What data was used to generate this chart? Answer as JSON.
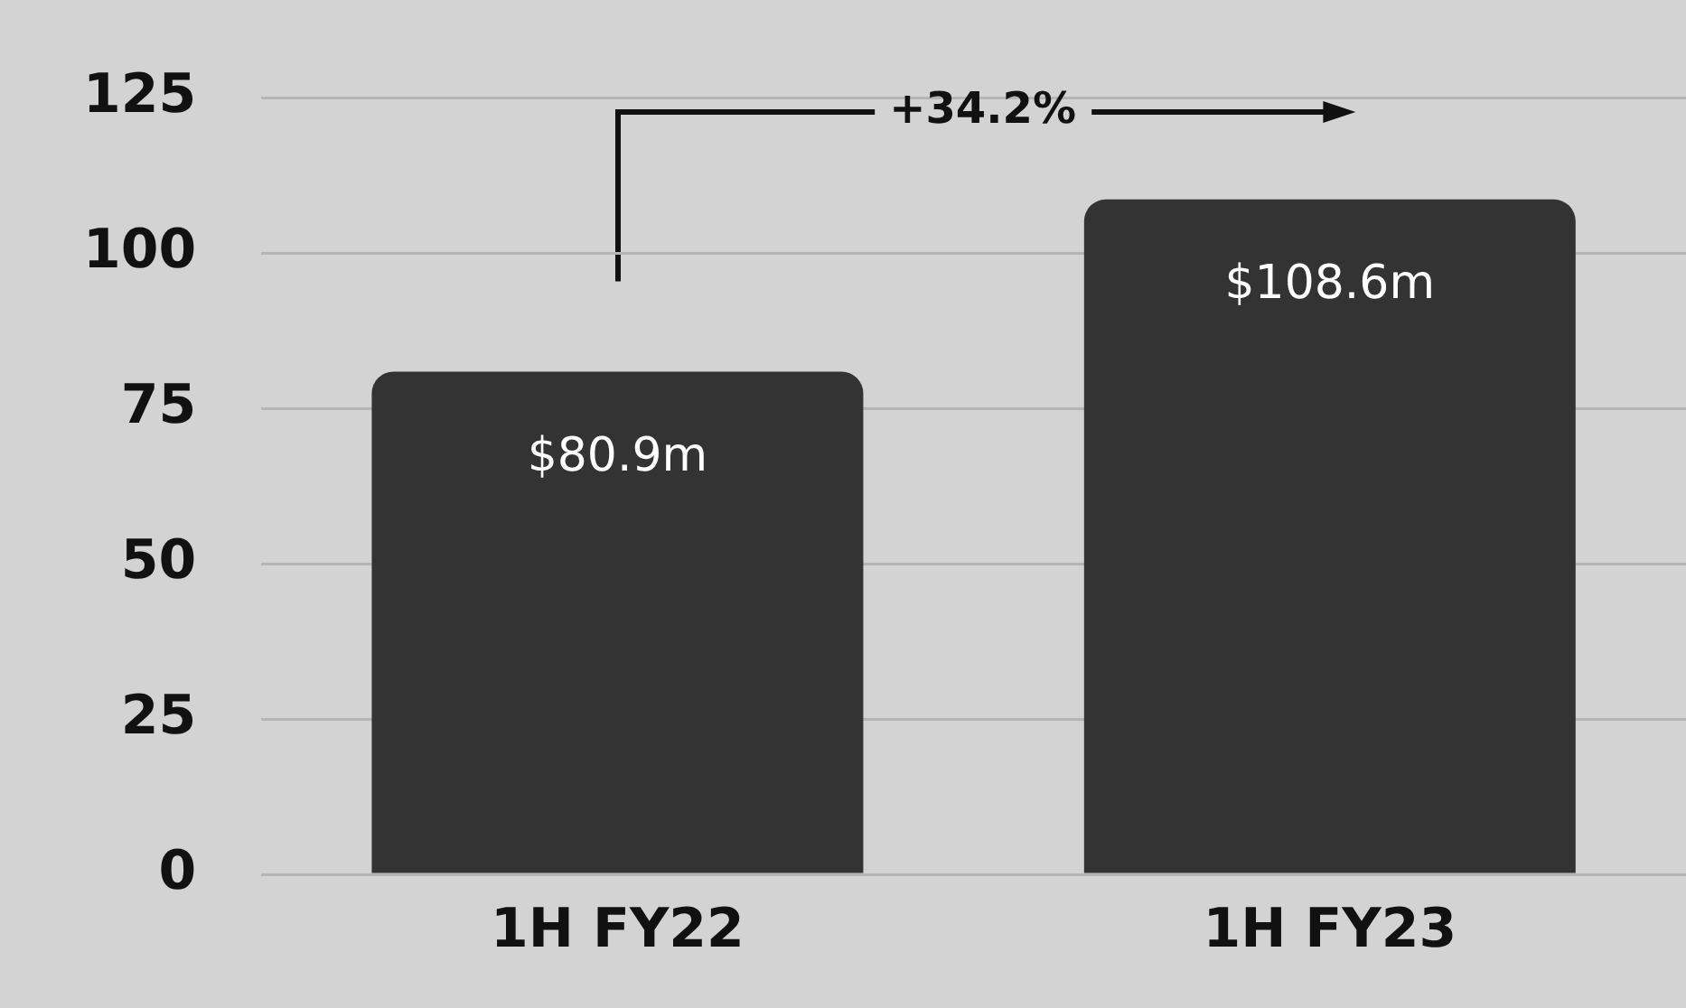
{
  "chart_data": {
    "type": "bar",
    "categories": [
      "1H FY22",
      "1H FY23"
    ],
    "values": [
      80.9,
      108.6
    ],
    "color": "#333333",
    "value_labels": [
      "$80.9m",
      "$108.6m"
    ],
    "ylim": [
      0,
      125
    ],
    "yticks": [
      0,
      25,
      50,
      75,
      100,
      125
    ],
    "grid": "y",
    "legend": false,
    "annotations": [
      "+34.2%"
    ]
  }
}
